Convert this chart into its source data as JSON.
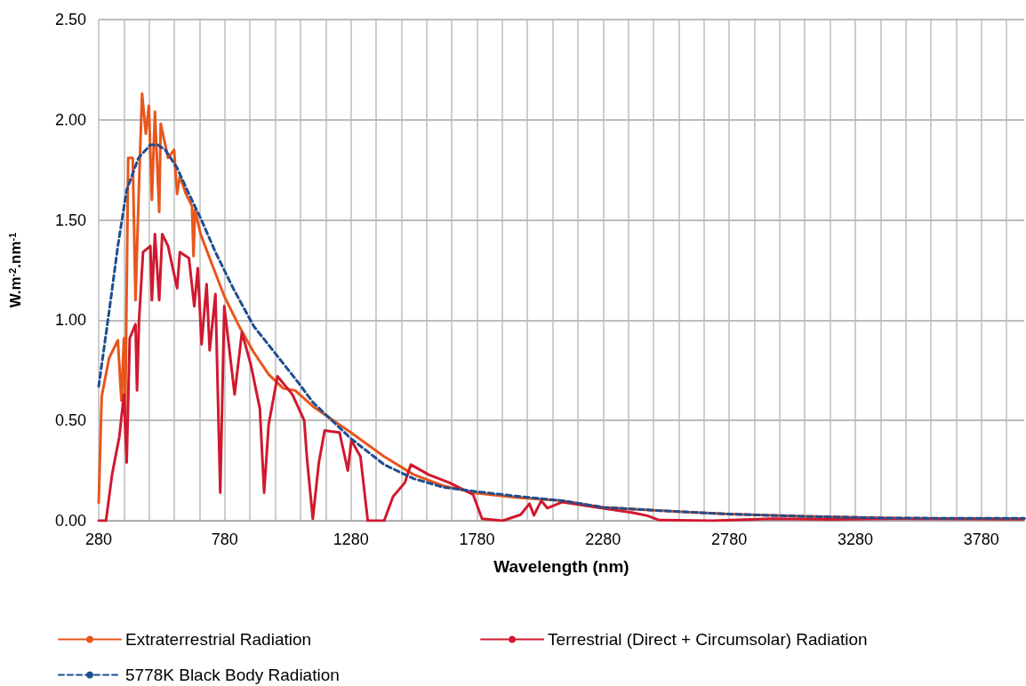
{
  "chart_data": {
    "type": "line",
    "xlabel": "Wavelength (nm)",
    "ylabel": "W.m$^{-2}$.nm$^{-1}$",
    "xlim": [
      280,
      3950
    ],
    "xticks": [
      280,
      {
        "value": 380,
        "label": null
      },
      {
        "value": 480,
        "label": null
      },
      {
        "value": 580,
        "label": null
      },
      {
        "value": 680,
        "label": null
      },
      780,
      {
        "value": 880,
        "label": null
      },
      {
        "value": 980,
        "label": null
      },
      {
        "value": 1080,
        "label": null
      },
      {
        "value": 1180,
        "label": null
      },
      1280,
      {
        "value": 1380,
        "label": null
      },
      {
        "value": 1480,
        "label": null
      },
      {
        "value": 1580,
        "label": null
      },
      {
        "value": 1680,
        "label": null
      },
      1780,
      {
        "value": 1880,
        "label": null
      },
      {
        "value": 1980,
        "label": null
      },
      {
        "value": 2080,
        "label": null
      },
      {
        "value": 2180,
        "label": null
      },
      2280,
      {
        "value": 2380,
        "label": null
      },
      {
        "value": 2480,
        "label": null
      },
      {
        "value": 2580,
        "label": null
      },
      {
        "value": 2680,
        "label": null
      },
      2780,
      {
        "value": 2880,
        "label": null
      },
      {
        "value": 2980,
        "label": null
      },
      {
        "value": 3080,
        "label": null
      },
      {
        "value": 3180,
        "label": null
      },
      3280,
      {
        "value": 3380,
        "label": null
      },
      {
        "value": 3480,
        "label": null
      },
      {
        "value": 3580,
        "label": null
      },
      {
        "value": 3680,
        "label": null
      },
      3780,
      {
        "value": 3880,
        "label": null
      }
    ],
    "ylim": [
      0,
      2.5
    ],
    "yticks": [
      {
        "value": 0,
        "label": "0.00"
      },
      {
        "value": 0.5,
        "label": "0.50"
      },
      {
        "value": 1,
        "label": "1.00"
      },
      {
        "value": 1.5,
        "label": "1.50"
      },
      {
        "value": 2,
        "label": "2.00"
      },
      {
        "value": 2.5,
        "label": "2.50"
      }
    ],
    "grid": true,
    "legend": "bottom",
    "marker": "none",
    "series": [
      {
        "name": "Extraterrestrial Radiation",
        "color": "#e8561c",
        "line_style": "solid",
        "x": [
          280,
          292,
          321,
          356,
          370,
          380,
          385,
          397,
          415,
          426,
          438,
          452,
          467,
          479,
          491,
          503,
          520,
          526,
          555,
          579,
          591,
          602,
          626,
          650,
          656,
          662,
          684,
          720,
          778,
          837,
          895,
          954,
          1012,
          1059,
          1130,
          1280,
          1412,
          1529,
          1647,
          1780,
          1941,
          2117,
          2280,
          2480,
          2780,
          3068,
          3421,
          3950
        ],
        "values": [
          0.09,
          0.62,
          0.81,
          0.9,
          0.6,
          0.91,
          0.5,
          1.81,
          1.81,
          1.1,
          1.6,
          2.13,
          1.93,
          2.07,
          1.6,
          2.04,
          1.54,
          1.98,
          1.81,
          1.85,
          1.63,
          1.72,
          1.63,
          1.57,
          1.32,
          1.55,
          1.43,
          1.31,
          1.12,
          0.97,
          0.84,
          0.73,
          0.66,
          0.65,
          0.57,
          0.44,
          0.32,
          0.23,
          0.174,
          0.137,
          0.115,
          0.1,
          0.067,
          0.052,
          0.033,
          0.022,
          0.013,
          0.01
        ]
      },
      {
        "name": "Terrestrial (Direct + Circumsolar) Radiation",
        "color": "#d0192f",
        "line_style": "solid",
        "x": [
          280,
          309,
          333,
          362,
          380,
          391,
          403,
          426,
          432,
          440,
          456,
          485,
          491,
          503,
          520,
          532,
          555,
          591,
          602,
          638,
          659,
          673,
          688,
          708,
          720,
          743,
          762,
          778,
          819,
          848,
          883,
          919,
          936,
          954,
          989,
          1048,
          1095,
          1106,
          1129,
          1153,
          1176,
          1235,
          1268,
          1282,
          1318,
          1347,
          1412,
          1447,
          1494,
          1518,
          1588,
          1670,
          1765,
          1800,
          1882,
          1953,
          1988,
          2006,
          2035,
          2059,
          2117,
          2280,
          2398,
          2456,
          2503,
          2715,
          2950,
          3186,
          3421,
          3950
        ],
        "values": [
          0,
          0,
          0.23,
          0.42,
          0.63,
          0.29,
          0.91,
          0.98,
          0.65,
          1.0,
          1.34,
          1.37,
          1.1,
          1.43,
          1.1,
          1.43,
          1.37,
          1.16,
          1.34,
          1.31,
          1.07,
          1.26,
          0.88,
          1.18,
          0.85,
          1.13,
          0.14,
          1.07,
          0.63,
          0.94,
          0.78,
          0.56,
          0.14,
          0.48,
          0.72,
          0.63,
          0.5,
          0.31,
          0.01,
          0.29,
          0.45,
          0.44,
          0.25,
          0.4,
          0.32,
          0,
          0,
          0.12,
          0.19,
          0.28,
          0.23,
          0.19,
          0.13,
          0.01,
          0,
          0.03,
          0.085,
          0.027,
          0.1,
          0.063,
          0.093,
          0.062,
          0.04,
          0.025,
          0.003,
          0,
          0.01,
          0.007,
          0.01,
          0.008
        ]
      },
      {
        "name": "5778K Black Body Radiation",
        "color": "#1f4e8f",
        "line_style": "dashed",
        "x": [
          280,
          321,
          356,
          391,
          438,
          485,
          514,
          544,
          591,
          638,
          684,
          743,
          813,
          895,
          977,
          1071,
          1130,
          1280,
          1412,
          1529,
          1647,
          1780,
          1941,
          2117,
          2280,
          2480,
          2780,
          3068,
          3421,
          3950
        ],
        "values": [
          0.67,
          1.04,
          1.37,
          1.65,
          1.81,
          1.875,
          1.875,
          1.85,
          1.76,
          1.63,
          1.51,
          1.34,
          1.16,
          0.97,
          0.84,
          0.69,
          0.59,
          0.41,
          0.28,
          0.21,
          0.167,
          0.145,
          0.122,
          0.1,
          0.067,
          0.052,
          0.033,
          0.022,
          0.013,
          0.012
        ]
      }
    ]
  }
}
